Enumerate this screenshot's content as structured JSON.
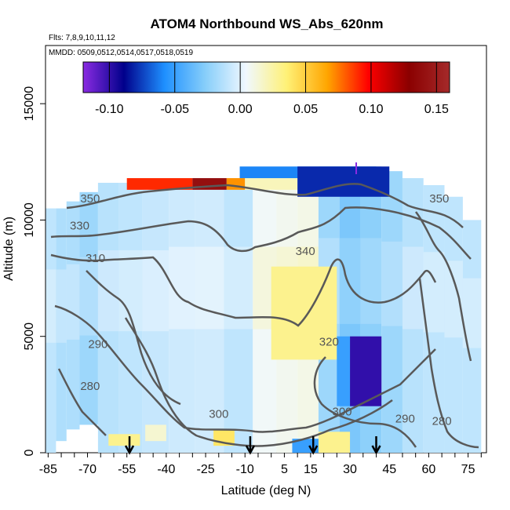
{
  "chart_data": {
    "type": "heatmap",
    "title": "ATOM4 Northbound WS_Abs_620nm",
    "flights_note": "Flts: 7,8,9,10,11,12",
    "dates_note": "MMDD: 0509,0512,0514,0517,0518,0519",
    "xlabel": "Latitude (deg N)",
    "ylabel": "Altitude (m)",
    "xlim": [
      -86,
      82
    ],
    "ylim": [
      0,
      17500
    ],
    "x_ticks": [
      -85,
      -70,
      -55,
      -40,
      -25,
      -10,
      5,
      15,
      30,
      45,
      60,
      75
    ],
    "y_ticks": [
      0,
      5000,
      10000,
      15000
    ],
    "colorbar": {
      "range": [
        -0.12,
        0.16
      ],
      "ticks": [
        "-0.10",
        "-0.05",
        "0.00",
        "0.05",
        "0.10",
        "0.15"
      ],
      "tick_values": [
        -0.1,
        -0.05,
        0.0,
        0.05,
        0.1,
        0.15
      ],
      "colors": [
        "#8a2be2",
        "#00008b",
        "#1e90ff",
        "#87cefa",
        "#f0f8ff",
        "#fff176",
        "#ffa500",
        "#ff0000",
        "#8b0000",
        "#a52a2a"
      ]
    },
    "contour_levels": [
      280,
      290,
      300,
      310,
      320,
      330,
      340,
      350
    ],
    "contour_labels": [
      {
        "text": "350",
        "lat": -69,
        "alt": 10750
      },
      {
        "text": "330",
        "lat": -73,
        "alt": 9600
      },
      {
        "text": "310",
        "lat": -67,
        "alt": 8200
      },
      {
        "text": "290",
        "lat": -66,
        "alt": 4500
      },
      {
        "text": "280",
        "lat": -69,
        "alt": 2700
      },
      {
        "text": "300",
        "lat": -20,
        "alt": 1500
      },
      {
        "text": "340",
        "lat": 13,
        "alt": 8500
      },
      {
        "text": "320",
        "lat": 22,
        "alt": 4600
      },
      {
        "text": "300",
        "lat": 27,
        "alt": 1600
      },
      {
        "text": "290",
        "lat": 51,
        "alt": 1300
      },
      {
        "text": "280",
        "lat": 65,
        "alt": 1200
      },
      {
        "text": "350",
        "lat": 64,
        "alt": 10750
      }
    ],
    "flight_markers": [
      -54,
      -8,
      16,
      40
    ],
    "tropopause_marker_lat": 34,
    "curtain": [
      {
        "lat": -84,
        "alt": [
          0,
          10500
        ],
        "v": -0.01
      },
      {
        "lat": -80,
        "alt": [
          500,
          10500
        ],
        "v": -0.015
      },
      {
        "lat": -76,
        "alt": [
          1000,
          10800
        ],
        "v": -0.015
      },
      {
        "lat": -70,
        "alt": [
          1200,
          11200
        ],
        "v": -0.02
      },
      {
        "lat": -62,
        "alt": [
          0,
          11600
        ],
        "v": -0.012
      },
      {
        "lat": -54,
        "alt": [
          0,
          11600
        ],
        "v": -0.01
      },
      {
        "lat": -44,
        "alt": [
          0,
          11600
        ],
        "v": -0.008
      },
      {
        "lat": -34,
        "alt": [
          0,
          11800
        ],
        "v": -0.006
      },
      {
        "lat": -24,
        "alt": [
          0,
          11800
        ],
        "v": -0.005
      },
      {
        "lat": -12,
        "alt": [
          0,
          11800
        ],
        "v": -0.01
      },
      {
        "lat": -2,
        "alt": [
          0,
          11800
        ],
        "v": 0.006
      },
      {
        "lat": 6,
        "alt": [
          0,
          11800
        ],
        "v": 0.008
      },
      {
        "lat": 14,
        "alt": [
          0,
          11800
        ],
        "v": 0.01
      },
      {
        "lat": 22,
        "alt": [
          0,
          12300
        ],
        "v": -0.02
      },
      {
        "lat": 30,
        "alt": [
          0,
          12300
        ],
        "v": -0.03
      },
      {
        "lat": 38,
        "alt": [
          0,
          12300
        ],
        "v": -0.025
      },
      {
        "lat": 46,
        "alt": [
          0,
          12100
        ],
        "v": -0.02
      },
      {
        "lat": 54,
        "alt": [
          0,
          11800
        ],
        "v": -0.012
      },
      {
        "lat": 62,
        "alt": [
          0,
          11500
        ],
        "v": -0.01
      },
      {
        "lat": 70,
        "alt": [
          0,
          11000
        ],
        "v": -0.01
      },
      {
        "lat": 76,
        "alt": [
          0,
          10000
        ],
        "v": -0.01
      }
    ],
    "features": [
      {
        "lat": [
          -55,
          -30
        ],
        "alt": [
          11300,
          11800
        ],
        "v": 0.09
      },
      {
        "lat": [
          -30,
          -17
        ],
        "alt": [
          11300,
          11800
        ],
        "v": 0.14
      },
      {
        "lat": [
          -17,
          -10
        ],
        "alt": [
          11300,
          11800
        ],
        "v": 0.07
      },
      {
        "lat": [
          -10,
          10
        ],
        "alt": [
          11300,
          11800
        ],
        "v": 0.02
      },
      {
        "lat": [
          -12,
          40
        ],
        "alt": [
          11800,
          12300
        ],
        "v": -0.06
      },
      {
        "lat": [
          10,
          45
        ],
        "alt": [
          11000,
          12300
        ],
        "v": -0.08
      },
      {
        "lat": [
          0,
          25
        ],
        "alt": [
          4000,
          8000
        ],
        "v": 0.03
      },
      {
        "lat": [
          30,
          42
        ],
        "alt": [
          2000,
          5000
        ],
        "v": -0.1
      },
      {
        "lat": [
          25,
          30
        ],
        "alt": [
          2000,
          5000
        ],
        "v": -0.05
      },
      {
        "lat": [
          18,
          30
        ],
        "alt": [
          0,
          900
        ],
        "v": 0.03
      },
      {
        "lat": [
          -22,
          -14
        ],
        "alt": [
          300,
          1000
        ],
        "v": 0.04
      },
      {
        "lat": [
          -62,
          -50
        ],
        "alt": [
          300,
          800
        ],
        "v": 0.03
      },
      {
        "lat": [
          -48,
          -40
        ],
        "alt": [
          500,
          1200
        ],
        "v": 0.015
      },
      {
        "lat": [
          8,
          18
        ],
        "alt": [
          0,
          600
        ],
        "v": -0.05
      }
    ]
  }
}
